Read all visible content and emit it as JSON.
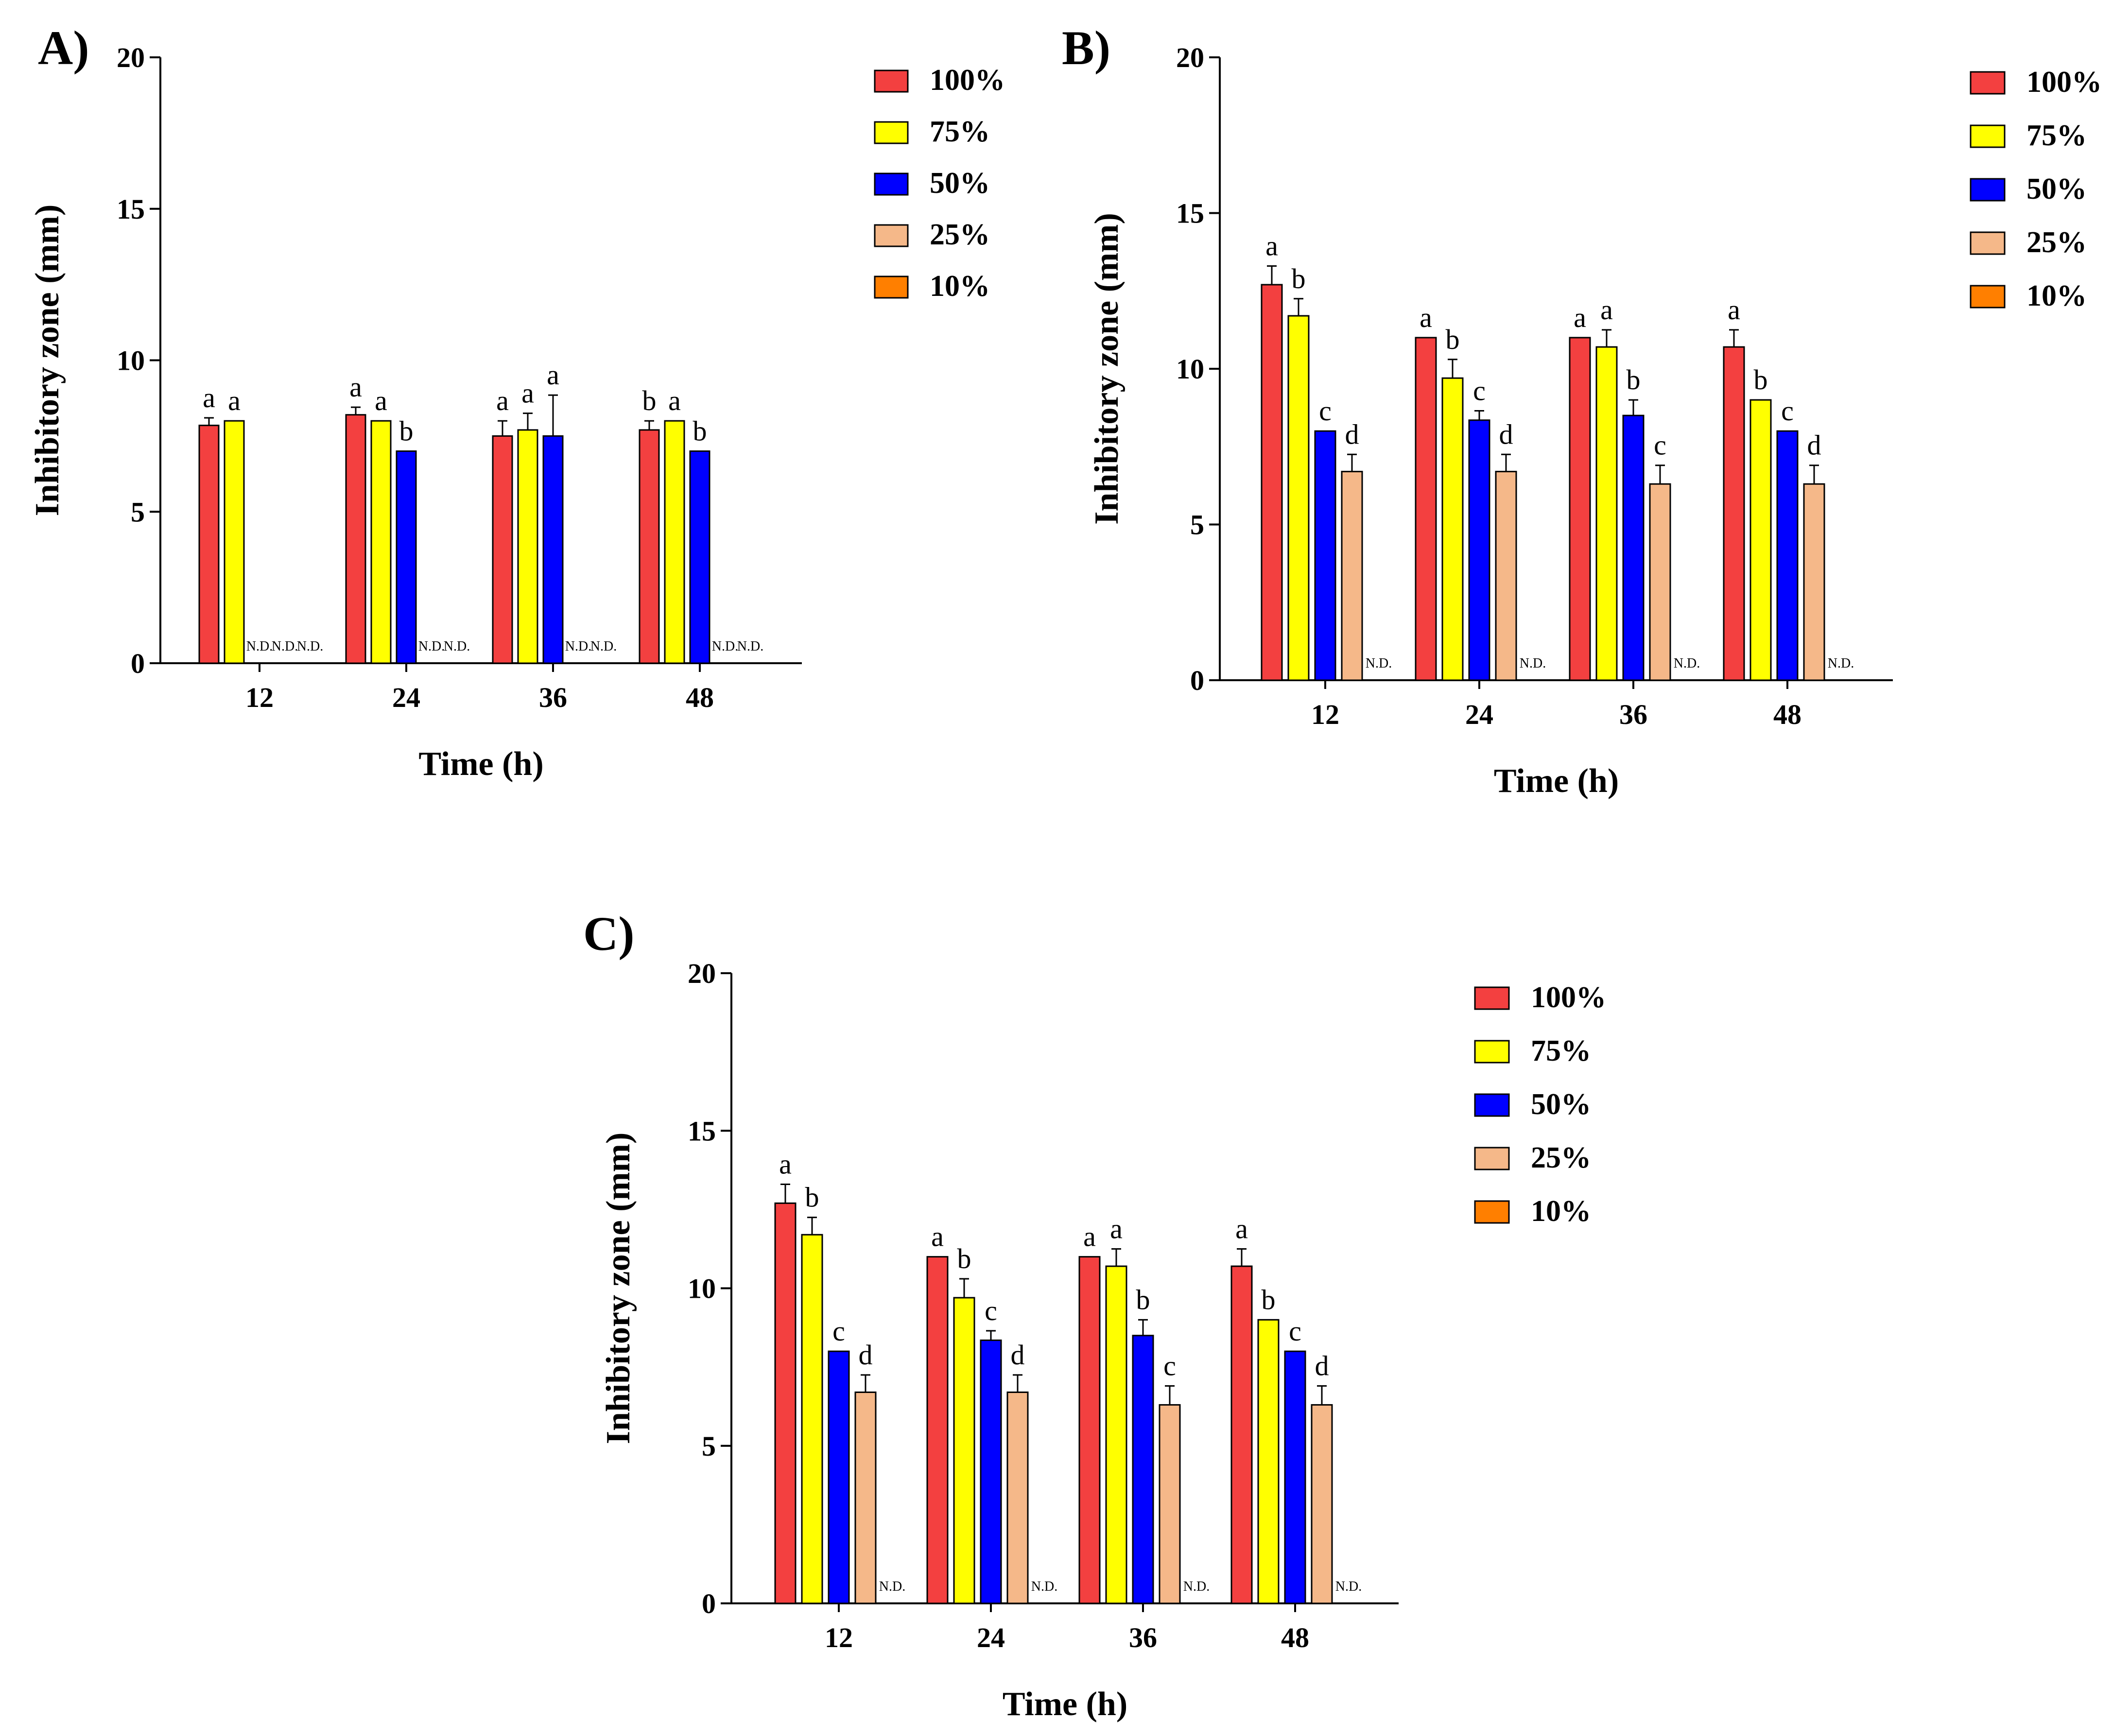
{
  "chart_data": [
    {
      "panel": "A)",
      "type": "bar",
      "categories": [
        "12",
        "24",
        "36",
        "48"
      ],
      "xlabel": "Time (h)",
      "ylabel": "Inhibitory zone (mm)",
      "ylim": [
        0,
        20
      ],
      "yticks": [
        "0",
        "5",
        "10",
        "15",
        "20"
      ],
      "legend": "right",
      "series": [
        {
          "name": "100%",
          "color": "#f34040",
          "values": [
            7.85,
            8.2,
            7.5,
            7.7
          ],
          "errors": [
            0.25,
            0.25,
            0.5,
            0.3
          ],
          "labels": [
            "a",
            "a",
            "a",
            "b"
          ]
        },
        {
          "name": "75%",
          "color": "#ffff00",
          "values": [
            8.0,
            8.0,
            7.7,
            8.0
          ],
          "errors": [
            0,
            0,
            0.55,
            0
          ],
          "labels": [
            "a",
            "a",
            "a",
            "a"
          ]
        },
        {
          "name": "50%",
          "color": "#0000ff",
          "values": [
            null,
            7.0,
            7.5,
            7.0
          ],
          "errors": [
            0,
            0,
            1.35,
            0
          ],
          "labels": [
            "N.D.",
            "b",
            "a",
            "b"
          ]
        },
        {
          "name": "25%",
          "color": "#f5b889",
          "values": [
            null,
            null,
            null,
            null
          ],
          "errors": [
            0,
            0,
            0,
            0
          ],
          "labels": [
            "N.D.",
            "N.D.",
            "N.D.",
            "N.D."
          ]
        },
        {
          "name": "10%",
          "color": "#ff7f00",
          "values": [
            null,
            null,
            null,
            null
          ],
          "errors": [
            0,
            0,
            0,
            0
          ],
          "labels": [
            "N.D.",
            "N.D.",
            "N.D.",
            "N.D."
          ]
        }
      ]
    },
    {
      "panel": "B)",
      "type": "bar",
      "categories": [
        "12",
        "24",
        "36",
        "48"
      ],
      "xlabel": "Time (h)",
      "ylabel": "Inhibitory zone (mm)",
      "ylim": [
        0,
        20
      ],
      "yticks": [
        "0",
        "5",
        "10",
        "15",
        "20"
      ],
      "legend": "right",
      "series": [
        {
          "name": "100%",
          "color": "#f34040",
          "values": [
            12.7,
            11.0,
            11.0,
            10.7
          ],
          "errors": [
            0.6,
            0,
            0,
            0.55
          ],
          "labels": [
            "a",
            "a",
            "a",
            "a"
          ]
        },
        {
          "name": "75%",
          "color": "#ffff00",
          "values": [
            11.7,
            9.7,
            10.7,
            9.0
          ],
          "errors": [
            0.55,
            0.6,
            0.55,
            0
          ],
          "labels": [
            "b",
            "b",
            "a",
            "b"
          ]
        },
        {
          "name": "50%",
          "color": "#0000ff",
          "values": [
            8.0,
            8.35,
            8.5,
            8.0
          ],
          "errors": [
            0,
            0.3,
            0.5,
            0
          ],
          "labels": [
            "c",
            "c",
            "b",
            "c"
          ]
        },
        {
          "name": "25%",
          "color": "#f5b889",
          "values": [
            6.7,
            6.7,
            6.3,
            6.3
          ],
          "errors": [
            0.55,
            0.55,
            0.6,
            0.6
          ],
          "labels": [
            "d",
            "d",
            "c",
            "d"
          ]
        },
        {
          "name": "10%",
          "color": "#ff7f00",
          "values": [
            null,
            null,
            null,
            null
          ],
          "errors": [
            0,
            0,
            0,
            0
          ],
          "labels": [
            "N.D.",
            "N.D.",
            "N.D.",
            "N.D."
          ]
        }
      ]
    },
    {
      "panel": "C)",
      "type": "bar",
      "categories": [
        "12",
        "24",
        "36",
        "48"
      ],
      "xlabel": "Time (h)",
      "ylabel": "Inhibitory zone (mm)",
      "ylim": [
        0,
        20
      ],
      "yticks": [
        "0",
        "5",
        "10",
        "15",
        "20"
      ],
      "legend": "right",
      "series": [
        {
          "name": "100%",
          "color": "#f34040",
          "values": [
            12.7,
            11.0,
            11.0,
            10.7
          ],
          "errors": [
            0.6,
            0,
            0,
            0.55
          ],
          "labels": [
            "a",
            "a",
            "a",
            "a"
          ]
        },
        {
          "name": "75%",
          "color": "#ffff00",
          "values": [
            11.7,
            9.7,
            10.7,
            9.0
          ],
          "errors": [
            0.55,
            0.6,
            0.55,
            0
          ],
          "labels": [
            "b",
            "b",
            "a",
            "b"
          ]
        },
        {
          "name": "50%",
          "color": "#0000ff",
          "values": [
            8.0,
            8.35,
            8.5,
            8.0
          ],
          "errors": [
            0,
            0.3,
            0.5,
            0
          ],
          "labels": [
            "c",
            "c",
            "b",
            "c"
          ]
        },
        {
          "name": "25%",
          "color": "#f5b889",
          "values": [
            6.7,
            6.7,
            6.3,
            6.3
          ],
          "errors": [
            0.55,
            0.55,
            0.6,
            0.6
          ],
          "labels": [
            "d",
            "d",
            "c",
            "d"
          ]
        },
        {
          "name": "10%",
          "color": "#ff7f00",
          "values": [
            null,
            null,
            null,
            null
          ],
          "errors": [
            0,
            0,
            0,
            0
          ],
          "labels": [
            "N.D.",
            "N.D.",
            "N.D.",
            "N.D."
          ]
        }
      ]
    }
  ]
}
